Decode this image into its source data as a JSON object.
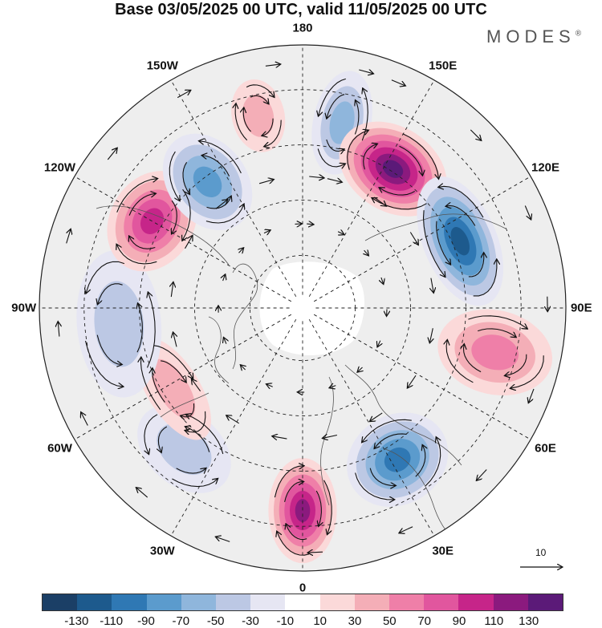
{
  "title": "Base 03/05/2025 00 UTC, valid 11/05/2025 00 UTC",
  "brand": {
    "name": "MODES",
    "mark": "®"
  },
  "longitudes": [
    {
      "label": "180",
      "angle": 0
    },
    {
      "label": "150E",
      "angle": 30
    },
    {
      "label": "120E",
      "angle": 60
    },
    {
      "label": "90E",
      "angle": 90
    },
    {
      "label": "60E",
      "angle": 120
    },
    {
      "label": "30E",
      "angle": 150
    },
    {
      "label": "0",
      "angle": 180
    },
    {
      "label": "30W",
      "angle": 210
    },
    {
      "label": "60W",
      "angle": 240
    },
    {
      "label": "90W",
      "angle": 270
    },
    {
      "label": "120W",
      "angle": 300
    },
    {
      "label": "150W",
      "angle": 330
    }
  ],
  "vector_reference": {
    "label": "10"
  },
  "colorbar": {
    "colors": [
      "#1b3f66",
      "#1d5a8d",
      "#2f78b4",
      "#5b9bcd",
      "#8fb6dc",
      "#bcc8e4",
      "#e6e6f3",
      "#ffffff",
      "#fbd9d9",
      "#f4aeb7",
      "#ef7fa8",
      "#e1569e",
      "#c62589",
      "#8b1a7e",
      "#5b1a78"
    ],
    "ticks": [
      "-130",
      "-110",
      "-90",
      "-70",
      "-50",
      "-30",
      "-10",
      "10",
      "30",
      "50",
      "70",
      "90",
      "110",
      "130"
    ]
  },
  "anomaly_centers": [
    {
      "angle": 12,
      "r": 0.72,
      "value": -60,
      "rx": 0.11,
      "ry": 0.2
    },
    {
      "angle": 33,
      "r": 0.63,
      "value": 130,
      "rx": 0.22,
      "ry": 0.16
    },
    {
      "angle": 67,
      "r": 0.65,
      "value": -110,
      "rx": 0.26,
      "ry": 0.14
    },
    {
      "angle": 103,
      "r": 0.75,
      "value": 60,
      "rx": 0.16,
      "ry": 0.22
    },
    {
      "angle": 148,
      "r": 0.68,
      "value": -90,
      "rx": 0.2,
      "ry": 0.17
    },
    {
      "angle": 180,
      "r": 0.77,
      "value": 110,
      "rx": 0.13,
      "ry": 0.2
    },
    {
      "angle": 220,
      "r": 0.7,
      "value": -30,
      "rx": 0.2,
      "ry": 0.14
    },
    {
      "angle": 238,
      "r": 0.58,
      "value": 40,
      "rx": 0.22,
      "ry": 0.1
    },
    {
      "angle": 265,
      "r": 0.7,
      "value": -40,
      "rx": 0.28,
      "ry": 0.16
    },
    {
      "angle": 300,
      "r": 0.66,
      "value": 90,
      "rx": 0.2,
      "ry": 0.16
    },
    {
      "angle": 323,
      "r": 0.6,
      "value": -70,
      "rx": 0.15,
      "ry": 0.2
    },
    {
      "angle": 347,
      "r": 0.75,
      "value": 30,
      "rx": 0.1,
      "ry": 0.14
    }
  ]
}
